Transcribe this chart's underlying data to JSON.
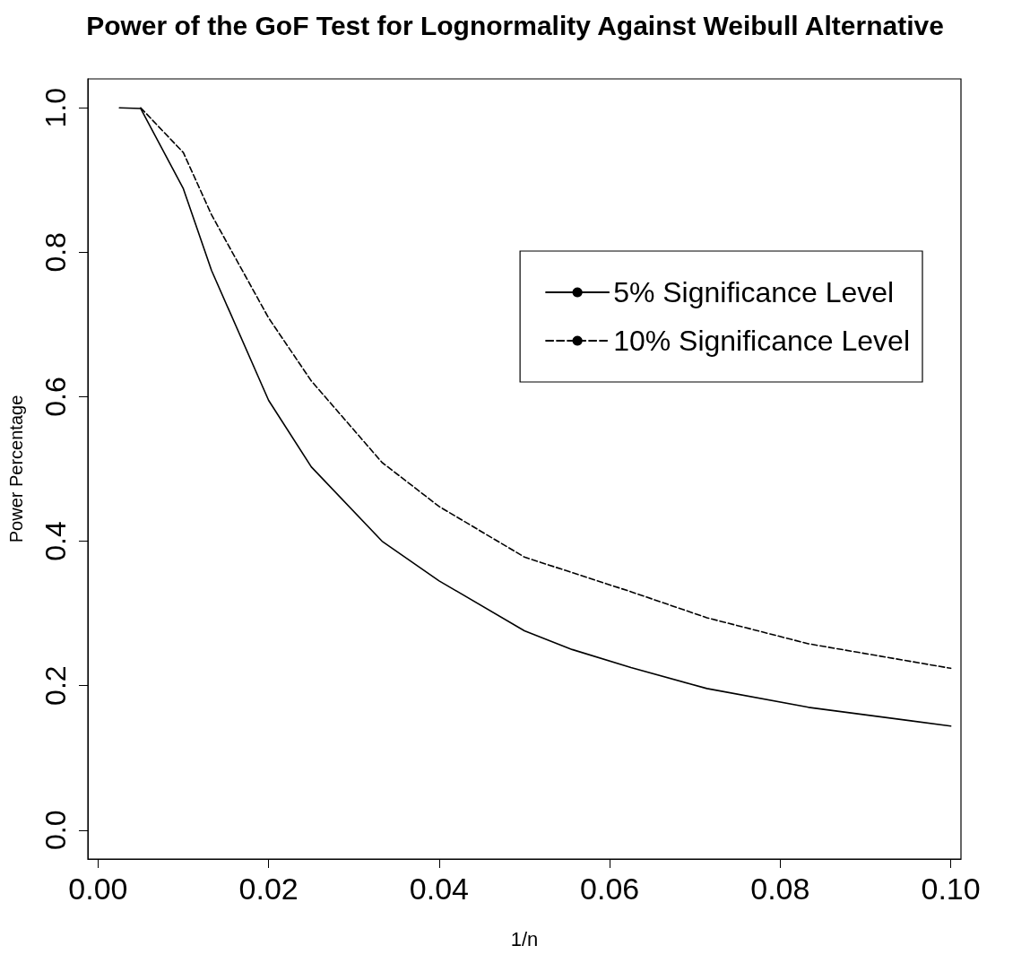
{
  "chart_data": {
    "type": "line",
    "title": "Power of the GoF Test for Lognormality Against Weibull Alternative",
    "xlabel": "1/n",
    "ylabel": "Power Percentage",
    "xlim": [
      -0.0012,
      0.1012
    ],
    "xticks": [
      {
        "value": 0,
        "label": "0.00"
      },
      0.02,
      0.04,
      0.06,
      0.08,
      {
        "value": 0.1,
        "label": "0.10"
      }
    ],
    "ylim": [
      -0.04,
      1.04
    ],
    "yticks": [
      {
        "value": 0,
        "label": "0.0"
      },
      0.2,
      0.4,
      0.6,
      0.8,
      {
        "value": 1,
        "label": "1.0"
      }
    ],
    "grid": false,
    "legend": "top right",
    "marker": "none",
    "series": [
      {
        "name": "5% Significance Level",
        "color": "#000000",
        "line_style": "solid",
        "x": [
          0.0025,
          0.005,
          0.01,
          0.0133,
          0.02,
          0.025,
          0.0333,
          0.04,
          0.05,
          0.0556,
          0.0625,
          0.0714,
          0.0833,
          0.1
        ],
        "values": [
          1.0,
          0.999,
          0.888,
          0.775,
          0.595,
          0.503,
          0.4,
          0.345,
          0.276,
          0.25,
          0.225,
          0.196,
          0.17,
          0.144
        ]
      },
      {
        "name": "10% Significance Level",
        "color": "#000000",
        "line_style": "dashed",
        "x": [
          0.005,
          0.01,
          0.0133,
          0.02,
          0.025,
          0.0333,
          0.04,
          0.05,
          0.0625,
          0.0714,
          0.0833,
          0.1
        ],
        "values": [
          1.0,
          0.938,
          0.852,
          0.709,
          0.622,
          0.509,
          0.448,
          0.378,
          0.33,
          0.294,
          0.258,
          0.224
        ]
      }
    ]
  }
}
